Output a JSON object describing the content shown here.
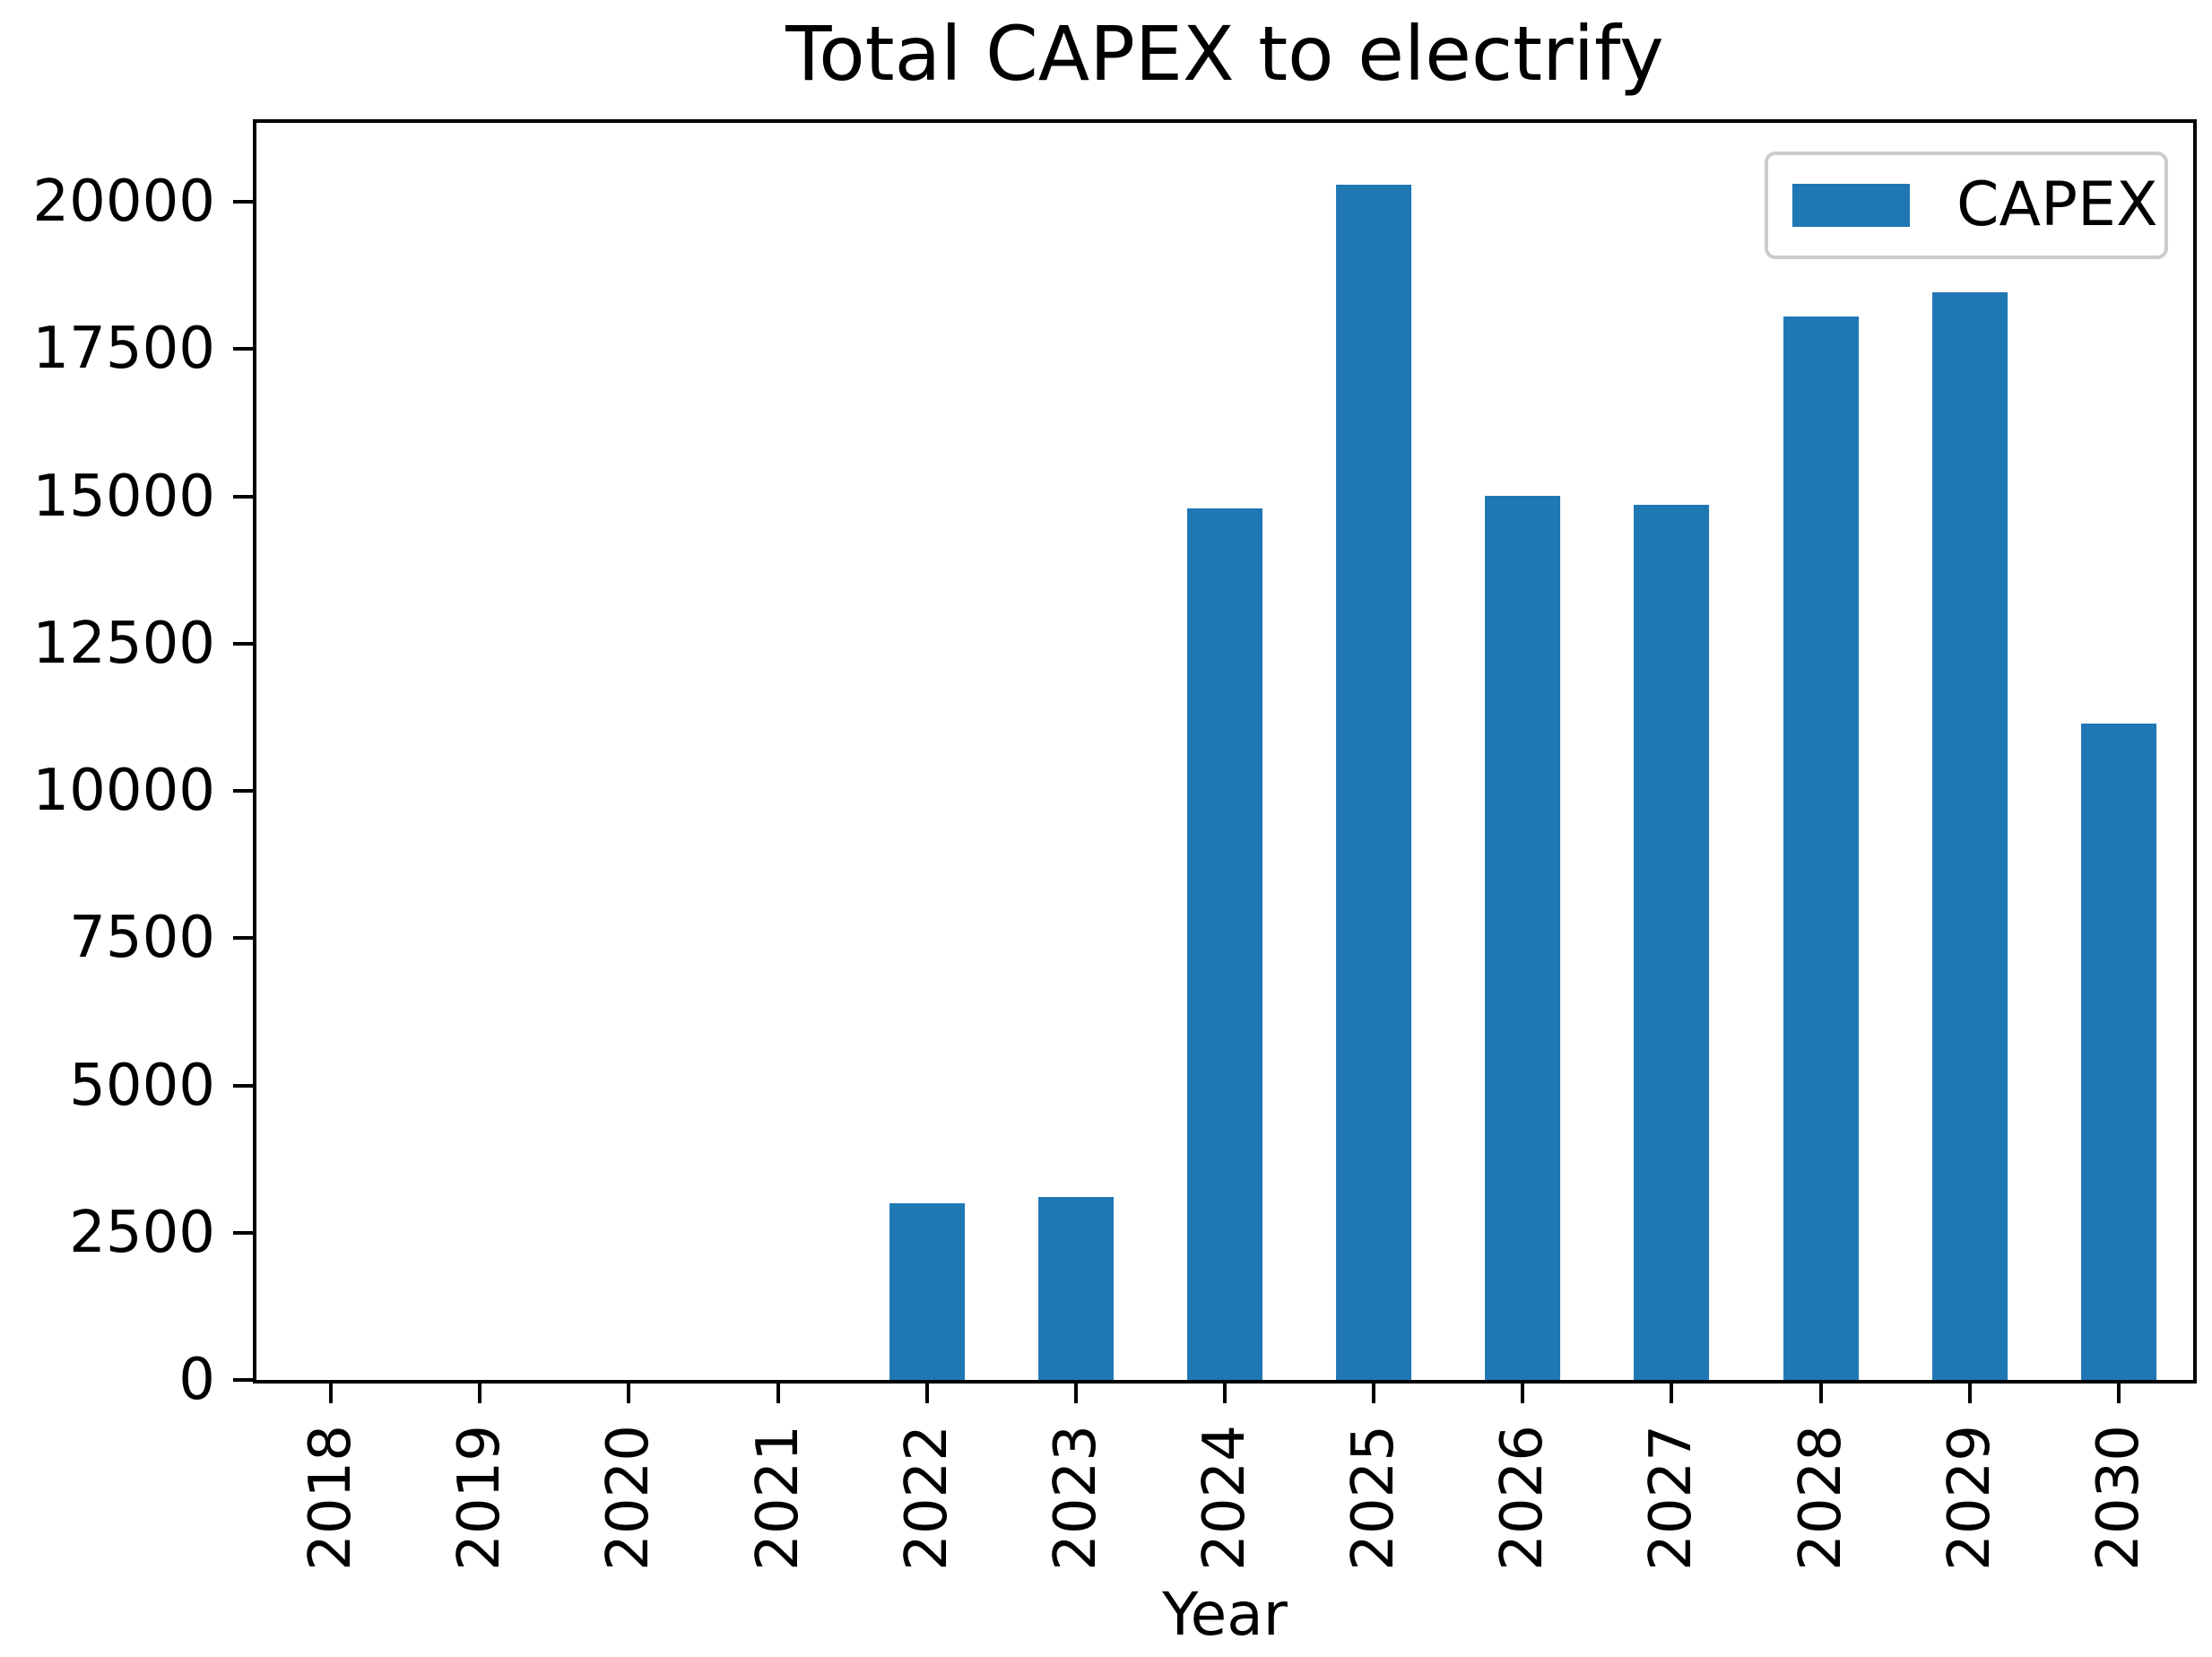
{
  "figure": {
    "background": "#ffffff",
    "text_color": "#000000",
    "spine_color": "#000000",
    "legend_border_color": "#cccccc"
  },
  "chart_data": {
    "type": "bar",
    "title": "Total CAPEX to electrify",
    "xlabel": "Year",
    "ylabel": "",
    "categories": [
      "2018",
      "2019",
      "2020",
      "2021",
      "2022",
      "2023",
      "2024",
      "2025",
      "2026",
      "2027",
      "2028",
      "2029",
      "2030"
    ],
    "series": [
      {
        "name": "CAPEX",
        "color": "#1f77b4",
        "values": [
          0,
          0,
          0,
          0,
          3000,
          3100,
          14800,
          20290,
          15010,
          14860,
          18060,
          18460,
          11150
        ]
      }
    ],
    "yticks": [
      0,
      2500,
      5000,
      7500,
      10000,
      12500,
      15000,
      17500,
      20000
    ],
    "ylim": [
      0,
      21343
    ],
    "grid": false,
    "legend_position": "upper right",
    "xtick_rotation_deg": 90,
    "bar_width_fraction": 0.505
  }
}
